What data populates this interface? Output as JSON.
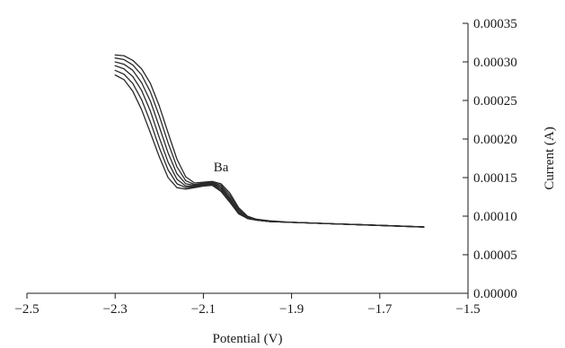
{
  "chart_data": {
    "type": "line",
    "title": "",
    "xlabel": "Potential (V)",
    "ylabel": "Current (A)",
    "xlim": [
      -2.5,
      -1.5
    ],
    "ylim": [
      0,
      0.00035
    ],
    "x_ticks": [
      -2.5,
      -2.3,
      -2.1,
      -1.9,
      -1.7,
      -1.5
    ],
    "x_tick_labels": [
      "−2.5",
      "−2.3",
      "−2.1",
      "−1.9",
      "−1.7",
      "−1.5"
    ],
    "y_ticks": [
      0,
      5e-05,
      0.0001,
      0.00015,
      0.0002,
      0.00025,
      0.0003,
      0.00035
    ],
    "y_tick_labels": [
      "0.00000",
      "0.00005",
      "0.00010",
      "0.00015",
      "0.00020",
      "0.00025",
      "0.00030",
      "0.00035"
    ],
    "y_axis_position": "right",
    "grid": false,
    "legend": "none",
    "line_color": "#2a2a2a",
    "annotations": [
      {
        "text": "Ba",
        "x": -2.06,
        "y": 0.000158
      }
    ],
    "series": [
      {
        "x": [
          -2.3,
          -2.28,
          -2.26,
          -2.24,
          -2.22,
          -2.2,
          -2.18,
          -2.16,
          -2.14,
          -2.12,
          -2.1,
          -2.08,
          -2.06,
          -2.04,
          -2.02,
          -2.0,
          -1.98,
          -1.95,
          -1.9,
          -1.85,
          -1.8,
          -1.75,
          -1.7,
          -1.65,
          -1.6
        ],
        "values": [
          0.000283,
          0.000277,
          0.000262,
          0.000238,
          0.000208,
          0.000177,
          0.00015,
          0.000137,
          0.000135,
          0.000137,
          0.000139,
          0.00014,
          0.000132,
          0.000118,
          0.000103,
          9.7e-05,
          9.5e-05,
          9.3e-05,
          9.2e-05,
          9.1e-05,
          9e-05,
          8.9e-05,
          8.8e-05,
          8.7e-05,
          8.6e-05
        ]
      },
      {
        "x": [
          -2.3,
          -2.28,
          -2.26,
          -2.24,
          -2.22,
          -2.2,
          -2.18,
          -2.16,
          -2.14,
          -2.12,
          -2.1,
          -2.08,
          -2.06,
          -2.04,
          -2.02,
          -2.0,
          -1.98,
          -1.95,
          -1.9,
          -1.85,
          -1.8,
          -1.75,
          -1.7,
          -1.65,
          -1.6
        ],
        "values": [
          0.000289,
          0.000284,
          0.000272,
          0.000251,
          0.000222,
          0.000189,
          0.00016,
          0.000142,
          0.000137,
          0.000138,
          0.00014,
          0.000141,
          0.000134,
          0.00012,
          0.000104,
          9.7e-05,
          9.5e-05,
          9.3e-05,
          9.2e-05,
          9.1e-05,
          9e-05,
          8.9e-05,
          8.8e-05,
          8.7e-05,
          8.6e-05
        ]
      },
      {
        "x": [
          -2.3,
          -2.28,
          -2.26,
          -2.24,
          -2.22,
          -2.2,
          -2.18,
          -2.16,
          -2.14,
          -2.12,
          -2.1,
          -2.08,
          -2.06,
          -2.04,
          -2.02,
          -2.0,
          -1.98,
          -1.95,
          -1.9,
          -1.85,
          -1.8,
          -1.75,
          -1.7,
          -1.65,
          -1.6
        ],
        "values": [
          0.000295,
          0.000291,
          0.000281,
          0.000263,
          0.000236,
          0.000202,
          0.00017,
          0.000148,
          0.000139,
          0.000139,
          0.000141,
          0.000142,
          0.000136,
          0.000122,
          0.000105,
          9.7e-05,
          9.5e-05,
          9.3e-05,
          9.2e-05,
          9.1e-05,
          9e-05,
          8.9e-05,
          8.8e-05,
          8.7e-05,
          8.6e-05
        ]
      },
      {
        "x": [
          -2.3,
          -2.28,
          -2.26,
          -2.24,
          -2.22,
          -2.2,
          -2.18,
          -2.16,
          -2.14,
          -2.12,
          -2.1,
          -2.08,
          -2.06,
          -2.04,
          -2.02,
          -2.0,
          -1.98,
          -1.95,
          -1.9,
          -1.85,
          -1.8,
          -1.75,
          -1.7,
          -1.65,
          -1.6
        ],
        "values": [
          0.0003,
          0.000297,
          0.000289,
          0.000273,
          0.000249,
          0.000216,
          0.000182,
          0.000155,
          0.000142,
          0.00014,
          0.000142,
          0.000143,
          0.000138,
          0.000124,
          0.000107,
          9.8e-05,
          9.5e-05,
          9.3e-05,
          9.2e-05,
          9.1e-05,
          9e-05,
          8.9e-05,
          8.8e-05,
          8.7e-05,
          8.6e-05
        ]
      },
      {
        "x": [
          -2.3,
          -2.28,
          -2.26,
          -2.24,
          -2.22,
          -2.2,
          -2.18,
          -2.16,
          -2.14,
          -2.12,
          -2.1,
          -2.08,
          -2.06,
          -2.04,
          -2.02,
          -2.0,
          -1.98,
          -1.95,
          -1.9,
          -1.85,
          -1.8,
          -1.75,
          -1.7,
          -1.65,
          -1.6
        ],
        "values": [
          0.000305,
          0.000303,
          0.000296,
          0.000283,
          0.000261,
          0.00023,
          0.000195,
          0.000164,
          0.000146,
          0.000141,
          0.000143,
          0.000144,
          0.00014,
          0.000127,
          0.000109,
          9.9e-05,
          9.6e-05,
          9.3e-05,
          9.2e-05,
          9.1e-05,
          9e-05,
          8.9e-05,
          8.8e-05,
          8.7e-05,
          8.6e-05
        ]
      },
      {
        "x": [
          -2.3,
          -2.28,
          -2.26,
          -2.24,
          -2.22,
          -2.2,
          -2.18,
          -2.16,
          -2.14,
          -2.12,
          -2.1,
          -2.08,
          -2.06,
          -2.04,
          -2.02,
          -2.0,
          -1.98,
          -1.95,
          -1.9,
          -1.85,
          -1.8,
          -1.75,
          -1.7,
          -1.65,
          -1.6
        ],
        "values": [
          0.000309,
          0.000308,
          0.000302,
          0.000291,
          0.000272,
          0.000243,
          0.000208,
          0.000174,
          0.000151,
          0.000143,
          0.000144,
          0.000145,
          0.000142,
          0.00013,
          0.000111,
          0.0001,
          9.6e-05,
          9.4e-05,
          9.2e-05,
          9.1e-05,
          9e-05,
          8.9e-05,
          8.8e-05,
          8.7e-05,
          8.6e-05
        ]
      }
    ]
  }
}
